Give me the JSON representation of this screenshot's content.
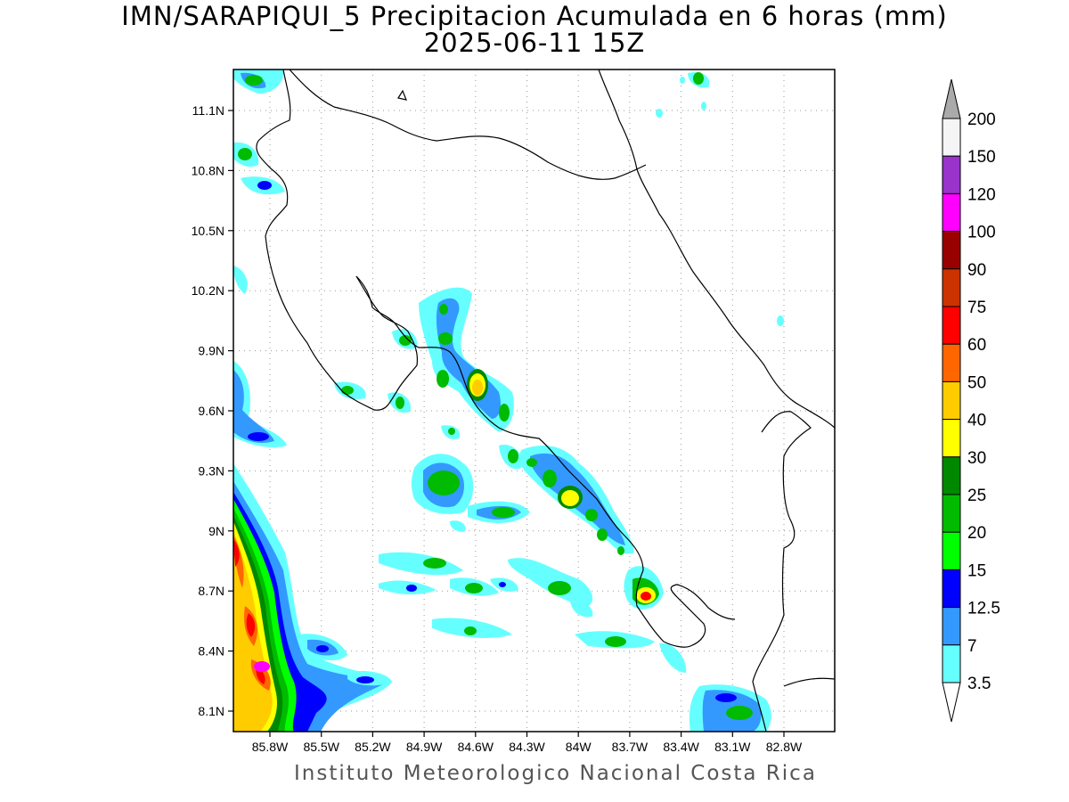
{
  "title": {
    "line1": "IMN/SARAPIQUI_5 Precipitacion Acumulada en 6 horas (mm)",
    "line2": "2025-06-11 15Z"
  },
  "footer": "Instituto Meteorologico Nacional Costa Rica",
  "map": {
    "lat_labels": [
      "11.1N",
      "10.8N",
      "10.5N",
      "10.2N",
      "9.9N",
      "9.6N",
      "9.3N",
      "9N",
      "8.7N",
      "8.4N",
      "8.1N"
    ],
    "lon_labels": [
      "85.8W",
      "85.5W",
      "85.2W",
      "84.9W",
      "84.6W",
      "84.3W",
      "84W",
      "83.7W",
      "83.4W",
      "83.1W",
      "82.8W"
    ]
  },
  "legend": {
    "labels": [
      "200",
      "150",
      "120",
      "100",
      "90",
      "75",
      "60",
      "50",
      "40",
      "30",
      "25",
      "20",
      "15",
      "12.5",
      "7",
      "3.5"
    ],
    "colors": [
      "#f5f5f5",
      "#9933cc",
      "#ff00ff",
      "#990000",
      "#cc3300",
      "#ff0000",
      "#ff6600",
      "#ffcc00",
      "#ffff00",
      "#008800",
      "#00bb00",
      "#00ff00",
      "#0000ff",
      "#3399ff",
      "#66ffff"
    ],
    "top_arrow_color": "#aaaaaa",
    "bottom_arrow_color": "#ffffff"
  }
}
